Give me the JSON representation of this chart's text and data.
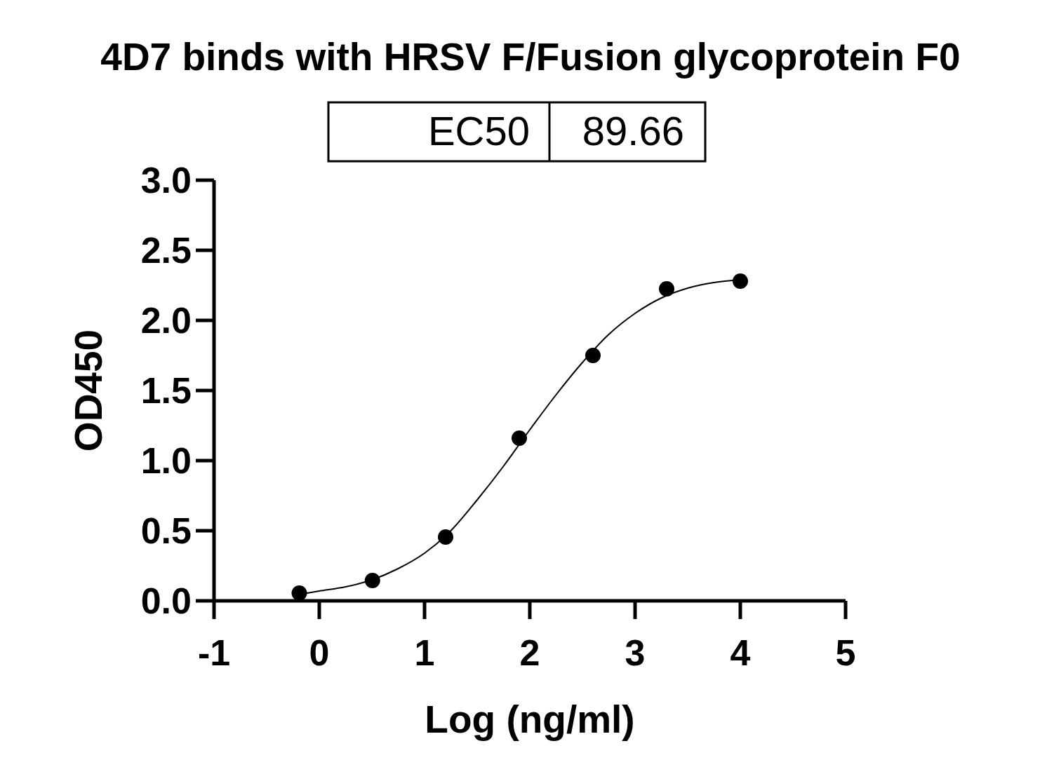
{
  "chart_data": {
    "type": "scatter",
    "title": "4D7 binds with HRSV F/Fusion glycoprotein F0",
    "xlabel": "Log (ng/ml)",
    "ylabel": "OD450",
    "annotations": [
      "EC50",
      "89.66"
    ],
    "xlim": [
      -1,
      5
    ],
    "xticks": [
      -1,
      0,
      1,
      2,
      3,
      4,
      5
    ],
    "ylim": [
      0,
      3
    ],
    "yticks": [
      {
        "value": 0,
        "label": "0.0"
      },
      {
        "value": 0.5,
        "label": "0.5"
      },
      {
        "value": 1,
        "label": "1.0"
      },
      {
        "value": 1.5,
        "label": "1.5"
      },
      {
        "value": 2,
        "label": "2.0"
      },
      {
        "value": 2.5,
        "label": "2.5"
      },
      {
        "value": 3,
        "label": "3.0"
      }
    ],
    "series": [
      {
        "color": "#000000",
        "marker": "circle",
        "x": [
          -0.19,
          0.505,
          1.2,
          1.9,
          2.6,
          3.3,
          4.0
        ],
        "values": [
          0.055,
          0.145,
          0.455,
          1.16,
          1.75,
          2.225,
          2.28
        ]
      },
      {
        "type": "line",
        "color": "#000000",
        "marker": "none",
        "line_style": "solid",
        "x": [
          -0.2,
          0,
          0.25,
          0.5,
          0.75,
          1,
          1.25,
          1.5,
          1.75,
          2,
          2.25,
          2.5,
          2.75,
          3,
          3.25,
          3.5,
          3.75,
          4
        ],
        "values": [
          0.045,
          0.07,
          0.1,
          0.15,
          0.23,
          0.34,
          0.5,
          0.72,
          0.96,
          1.22,
          1.47,
          1.7,
          1.9,
          2.05,
          2.16,
          2.23,
          2.27,
          2.29
        ]
      }
    ]
  }
}
